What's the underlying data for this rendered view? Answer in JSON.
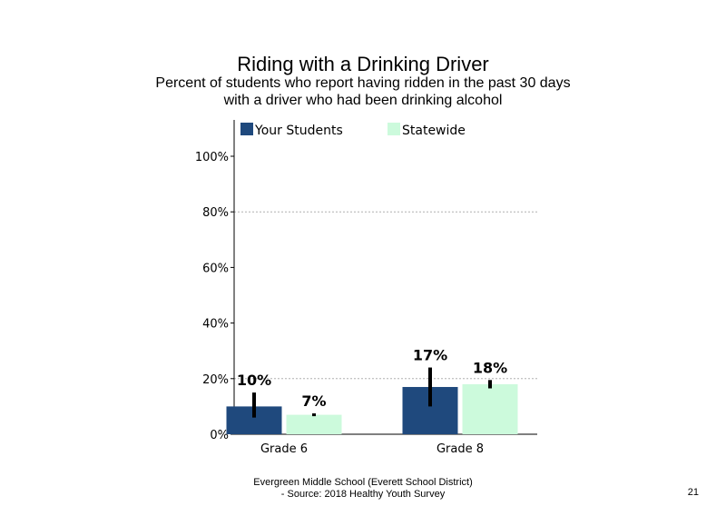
{
  "page": {
    "title": "Riding with a Drinking Driver",
    "subtitle_line1": "Percent of students who report having ridden in the past 30 days",
    "subtitle_line2": "with a driver who had been drinking alcohol",
    "footer_line1": "Evergreen Middle School (Everett School District)",
    "footer_line2": "- Source: 2018 Healthy Youth Survey",
    "page_number": "21"
  },
  "chart_data": {
    "type": "bar",
    "categories": [
      "Grade 6",
      "Grade 8"
    ],
    "series": [
      {
        "name": "Your Students",
        "color": "#1f497d",
        "values": [
          10,
          17
        ],
        "labels": [
          "10%",
          "17%"
        ],
        "error_low": [
          6,
          10
        ],
        "error_high": [
          15,
          24
        ]
      },
      {
        "name": "Statewide",
        "color": "#ccfadc",
        "values": [
          7,
          18
        ],
        "labels": [
          "7%",
          "18%"
        ],
        "error_low": [
          6.5,
          16.5
        ],
        "error_high": [
          7.5,
          19.5
        ]
      }
    ],
    "yticks": [
      "0%",
      "20%",
      "40%",
      "60%",
      "80%",
      "100%"
    ],
    "ytick_values": [
      0,
      20,
      40,
      60,
      80,
      100
    ],
    "ylim": [
      0,
      100
    ],
    "gridlines": [
      20,
      80
    ],
    "legend_position": "top",
    "error_bar_color": "#000000"
  }
}
